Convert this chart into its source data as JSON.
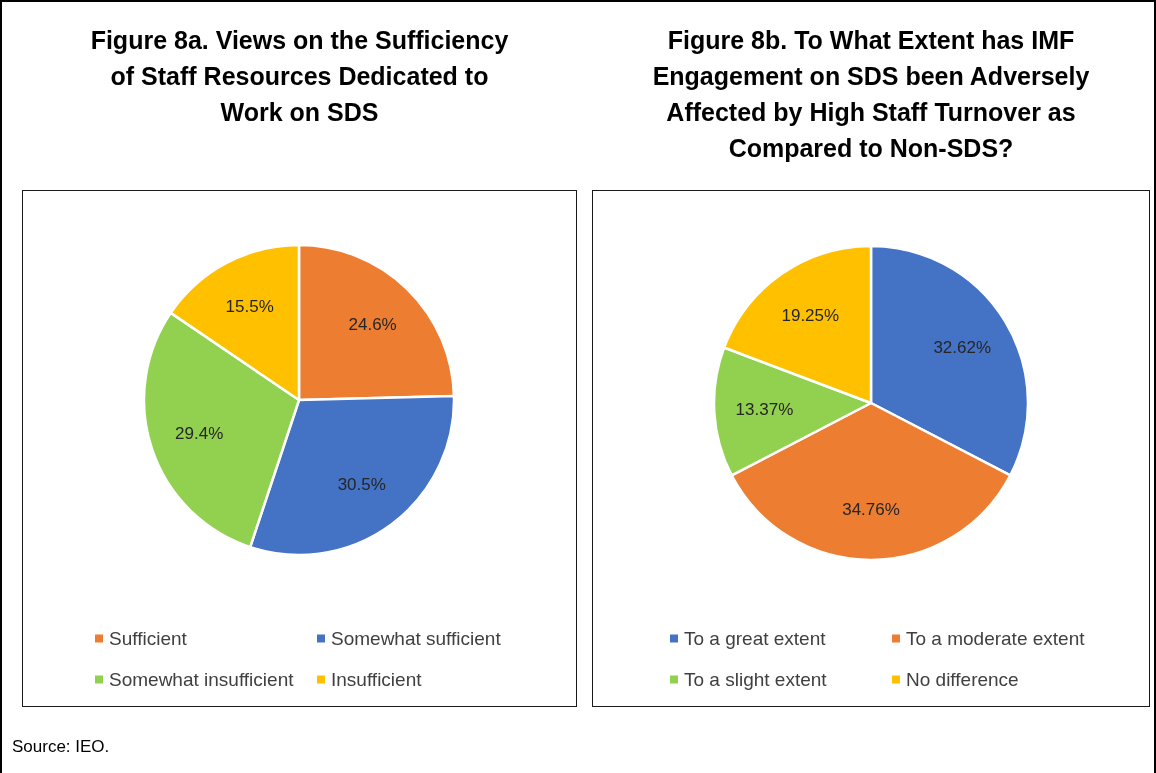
{
  "chart_data": [
    {
      "type": "pie",
      "title": "Figure 8a. Views on the Sufficiency of Staff Resources Dedicated to Work on SDS",
      "categories": [
        "Sufficient",
        "Somewhat sufficient",
        "Somewhat insufficient",
        "Insufficient"
      ],
      "values": [
        24.6,
        30.5,
        29.4,
        15.5
      ],
      "colors": [
        "#ed7d31",
        "#4472c4",
        "#92d050",
        "#ffc000"
      ],
      "value_labels": [
        "24.6%",
        "30.5%",
        "29.4%",
        "15.5%"
      ],
      "legend": "bottom",
      "annotations": [
        "Source: IEO."
      ]
    },
    {
      "type": "pie",
      "title": "Figure 8b. To What Extent has IMF Engagement on SDS been Adversely Affected by High Staff Turnover as Compared to Non-SDS?",
      "categories": [
        "To a great extent",
        "To a moderate extent",
        "To a slight extent",
        "No difference"
      ],
      "values": [
        32.62,
        34.76,
        13.37,
        19.25
      ],
      "colors": [
        "#4472c4",
        "#ed7d31",
        "#92d050",
        "#ffc000"
      ],
      "value_labels": [
        "32.62%",
        "34.76%",
        "13.37%",
        "19.25%"
      ],
      "legend": "bottom"
    }
  ]
}
